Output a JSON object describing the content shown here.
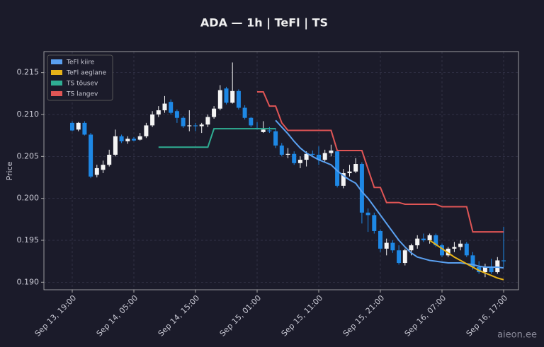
{
  "chart_data": {
    "type": "candlestick",
    "title": "ADA — 1h  |  TeFl  |  TS",
    "y_label": "Price",
    "watermark": "aieon.ee",
    "up_color": "#f5f5f5",
    "down_color": "#1e88e5",
    "grid": true,
    "legend": "upper left",
    "x": [
      "Sep 13, 19:00",
      "Sep 13, 20:00",
      "Sep 13, 21:00",
      "Sep 13, 22:00",
      "Sep 13, 23:00",
      "Sep 14, 00:00",
      "Sep 14, 01:00",
      "Sep 14, 02:00",
      "Sep 14, 03:00",
      "Sep 14, 04:00",
      "Sep 14, 05:00",
      "Sep 14, 06:00",
      "Sep 14, 07:00",
      "Sep 14, 08:00",
      "Sep 14, 09:00",
      "Sep 14, 10:00",
      "Sep 14, 11:00",
      "Sep 14, 12:00",
      "Sep 14, 13:00",
      "Sep 14, 14:00",
      "Sep 14, 15:00",
      "Sep 14, 16:00",
      "Sep 14, 17:00",
      "Sep 14, 18:00",
      "Sep 14, 19:00",
      "Sep 14, 20:00",
      "Sep 14, 21:00",
      "Sep 14, 22:00",
      "Sep 14, 23:00",
      "Sep 15, 00:00",
      "Sep 15, 01:00",
      "Sep 15, 02:00",
      "Sep 15, 03:00",
      "Sep 15, 04:00",
      "Sep 15, 05:00",
      "Sep 15, 06:00",
      "Sep 15, 07:00",
      "Sep 15, 08:00",
      "Sep 15, 09:00",
      "Sep 15, 10:00",
      "Sep 15, 11:00",
      "Sep 15, 12:00",
      "Sep 15, 13:00",
      "Sep 15, 14:00",
      "Sep 15, 15:00",
      "Sep 15, 16:00",
      "Sep 15, 17:00",
      "Sep 15, 18:00",
      "Sep 15, 19:00",
      "Sep 15, 20:00",
      "Sep 15, 21:00",
      "Sep 15, 22:00",
      "Sep 15, 23:00",
      "Sep 16, 00:00",
      "Sep 16, 01:00",
      "Sep 16, 02:00",
      "Sep 16, 03:00",
      "Sep 16, 04:00",
      "Sep 16, 05:00",
      "Sep 16, 06:00",
      "Sep 16, 07:00",
      "Sep 16, 08:00",
      "Sep 16, 09:00",
      "Sep 16, 10:00",
      "Sep 16, 11:00",
      "Sep 16, 12:00",
      "Sep 16, 13:00",
      "Sep 16, 14:00",
      "Sep 16, 15:00",
      "Sep 16, 16:00",
      "Sep 16, 17:00"
    ],
    "xticks": [
      "Sep 13, 19:00",
      "Sep 14, 05:00",
      "Sep 14, 15:00",
      "Sep 15, 01:00",
      "Sep 15, 11:00",
      "Sep 15, 21:00",
      "Sep 16, 07:00",
      "Sep 16, 17:00"
    ],
    "open": [
      0.209,
      0.2082,
      0.209,
      0.2076,
      0.2028,
      0.2034,
      0.204,
      0.2052,
      0.2074,
      0.2068,
      0.2071,
      0.207,
      0.2074,
      0.2087,
      0.21,
      0.2105,
      0.2115,
      0.2104,
      0.2096,
      0.2086,
      0.2087,
      0.2086,
      0.2088,
      0.2097,
      0.2107,
      0.2131,
      0.2114,
      0.2128,
      0.2108,
      0.2096,
      0.2084,
      0.2079,
      0.2081,
      0.208,
      0.2063,
      0.2052,
      0.2053,
      0.2042,
      0.2046,
      0.2053,
      0.2052,
      0.2046,
      0.2054,
      0.2056,
      0.2015,
      0.203,
      0.2032,
      0.2041,
      0.1983,
      0.198,
      0.1961,
      0.194,
      0.1947,
      0.1938,
      0.1923,
      0.1938,
      0.1944,
      0.1952,
      0.195,
      0.1956,
      0.1944,
      0.1932,
      0.194,
      0.1942,
      0.1946,
      0.1932,
      0.1918,
      0.1912,
      0.1918,
      0.1912,
      0.1926
    ],
    "high": [
      0.2092,
      0.2091,
      0.2092,
      0.2078,
      0.204,
      0.2045,
      0.2058,
      0.2082,
      0.2076,
      0.2074,
      0.2073,
      0.2078,
      0.209,
      0.2104,
      0.211,
      0.2122,
      0.2118,
      0.2106,
      0.2098,
      0.2105,
      0.209,
      0.209,
      0.21,
      0.211,
      0.2135,
      0.2133,
      0.2162,
      0.213,
      0.2111,
      0.2097,
      0.2091,
      0.2092,
      0.2085,
      0.2084,
      0.2066,
      0.206,
      0.2056,
      0.205,
      0.2056,
      0.2057,
      0.2062,
      0.2058,
      0.2064,
      0.2058,
      0.2035,
      0.204,
      0.2048,
      0.2043,
      0.1988,
      0.1983,
      0.1963,
      0.1952,
      0.195,
      0.1944,
      0.194,
      0.1946,
      0.1956,
      0.1958,
      0.1958,
      0.1958,
      0.1946,
      0.1942,
      0.1948,
      0.195,
      0.1948,
      0.1936,
      0.1925,
      0.1922,
      0.1928,
      0.193,
      0.1966
    ],
    "low": [
      0.208,
      0.208,
      0.2075,
      0.2024,
      0.2025,
      0.203,
      0.2038,
      0.205,
      0.2066,
      0.2065,
      0.2068,
      0.2069,
      0.2072,
      0.2085,
      0.2097,
      0.2102,
      0.21,
      0.209,
      0.2084,
      0.208,
      0.208,
      0.2078,
      0.2085,
      0.2095,
      0.2105,
      0.2112,
      0.2113,
      0.2106,
      0.2094,
      0.2085,
      0.2082,
      0.2078,
      0.2078,
      0.206,
      0.205,
      0.2048,
      0.204,
      0.2036,
      0.2038,
      0.205,
      0.204,
      0.2044,
      0.205,
      0.2013,
      0.2012,
      0.2026,
      0.203,
      0.197,
      0.196,
      0.1958,
      0.1936,
      0.1932,
      0.1935,
      0.1921,
      0.192,
      0.1932,
      0.194,
      0.1948,
      0.1946,
      0.1942,
      0.193,
      0.193,
      0.1936,
      0.1938,
      0.193,
      0.1915,
      0.191,
      0.1906,
      0.191,
      0.191,
      0.1918
    ],
    "close": [
      0.2081,
      0.209,
      0.2076,
      0.2026,
      0.2036,
      0.204,
      0.2052,
      0.2074,
      0.2068,
      0.2071,
      0.2069,
      0.2074,
      0.2087,
      0.21,
      0.2105,
      0.2113,
      0.2102,
      0.2096,
      0.2086,
      0.2087,
      0.2086,
      0.2088,
      0.2097,
      0.2107,
      0.2129,
      0.2114,
      0.2128,
      0.2108,
      0.2096,
      0.2087,
      0.2083,
      0.2082,
      0.208,
      0.2063,
      0.2052,
      0.2053,
      0.2042,
      0.2046,
      0.2053,
      0.2052,
      0.2046,
      0.2054,
      0.2057,
      0.2015,
      0.203,
      0.2032,
      0.2041,
      0.1983,
      0.198,
      0.1961,
      0.194,
      0.1947,
      0.1938,
      0.1923,
      0.1938,
      0.1944,
      0.1952,
      0.195,
      0.1956,
      0.1944,
      0.1932,
      0.194,
      0.1942,
      0.1946,
      0.1932,
      0.1918,
      0.1912,
      0.1918,
      0.1912,
      0.1926,
      0.1925
    ],
    "ylim": [
      0.1891,
      0.2175
    ],
    "yticks": [
      {
        "value": 0.19,
        "label": "0.190"
      },
      {
        "value": 0.195,
        "label": "0.195"
      },
      {
        "value": 0.2,
        "label": "0.200"
      },
      {
        "value": 0.205,
        "label": "0.205"
      },
      {
        "value": 0.21,
        "label": "0.210"
      },
      {
        "value": 0.215,
        "label": "0.215"
      }
    ],
    "series": [
      {
        "name": "TeFl kiire",
        "color": "#5aa0f0",
        "values": [
          null,
          null,
          null,
          null,
          null,
          null,
          null,
          null,
          null,
          null,
          null,
          null,
          null,
          null,
          null,
          null,
          null,
          null,
          null,
          null,
          null,
          null,
          null,
          null,
          null,
          null,
          null,
          null,
          null,
          null,
          null,
          null,
          null,
          0.2093,
          0.2085,
          0.2077,
          0.2068,
          0.206,
          0.2054,
          0.205,
          0.2046,
          0.2043,
          0.204,
          0.2033,
          0.2027,
          0.2022,
          0.2018,
          0.2008,
          0.2,
          0.199,
          0.198,
          0.197,
          0.196,
          0.195,
          0.1942,
          0.1935,
          0.193,
          0.1928,
          0.1926,
          0.1925,
          0.1924,
          0.1923,
          0.1923,
          0.1923,
          0.1922,
          0.1921,
          0.1919,
          0.1918,
          0.1918,
          0.1918,
          0.1917
        ]
      },
      {
        "name": "TeFl aeglane",
        "color": "#e6b219",
        "values": [
          null,
          null,
          null,
          null,
          null,
          null,
          null,
          null,
          null,
          null,
          null,
          null,
          null,
          null,
          null,
          null,
          null,
          null,
          null,
          null,
          null,
          null,
          null,
          null,
          null,
          null,
          null,
          null,
          null,
          null,
          null,
          null,
          null,
          null,
          null,
          null,
          null,
          null,
          null,
          null,
          null,
          null,
          null,
          null,
          null,
          null,
          null,
          null,
          null,
          null,
          null,
          null,
          null,
          null,
          null,
          null,
          null,
          null,
          0.195,
          0.1945,
          0.194,
          0.1935,
          0.193,
          0.1926,
          0.1922,
          0.1918,
          0.1914,
          0.1911,
          0.1908,
          0.1905,
          0.1903
        ]
      },
      {
        "name": "TS tõusev",
        "color": "#2fae93",
        "values": [
          null,
          null,
          null,
          null,
          null,
          null,
          null,
          null,
          null,
          null,
          null,
          null,
          null,
          null,
          0.2061,
          0.2061,
          0.2061,
          0.2061,
          0.2061,
          0.2061,
          0.2061,
          0.2061,
          0.2061,
          0.2083,
          0.2083,
          0.2083,
          0.2083,
          0.2083,
          0.2083,
          0.2083,
          0.2083,
          0.2083,
          0.2083,
          0.2083,
          null,
          null,
          null,
          null,
          null,
          null,
          null,
          null,
          null,
          null,
          null,
          null,
          null,
          null,
          null,
          null,
          null,
          null,
          null,
          null,
          null,
          null,
          null,
          null,
          null,
          null,
          null,
          null,
          null,
          null,
          null,
          null,
          null,
          null,
          null,
          null,
          null
        ]
      },
      {
        "name": "TS langev",
        "color": "#e05555",
        "values": [
          null,
          null,
          null,
          null,
          null,
          null,
          null,
          null,
          null,
          null,
          null,
          null,
          null,
          null,
          null,
          null,
          null,
          null,
          null,
          null,
          null,
          null,
          null,
          null,
          null,
          null,
          null,
          null,
          null,
          null,
          0.2127,
          0.2127,
          0.211,
          0.211,
          0.209,
          0.2081,
          0.2081,
          0.2081,
          0.2081,
          0.2081,
          0.2081,
          0.2081,
          0.2081,
          0.2057,
          0.2057,
          0.2057,
          0.2057,
          0.2057,
          0.2035,
          0.2013,
          0.2013,
          0.1995,
          0.1995,
          0.1995,
          0.1993,
          0.1993,
          0.1993,
          0.1993,
          0.1993,
          0.1993,
          0.199,
          0.199,
          0.199,
          0.199,
          0.199,
          0.196,
          0.196,
          0.196,
          0.196,
          0.196,
          0.196
        ]
      }
    ]
  }
}
